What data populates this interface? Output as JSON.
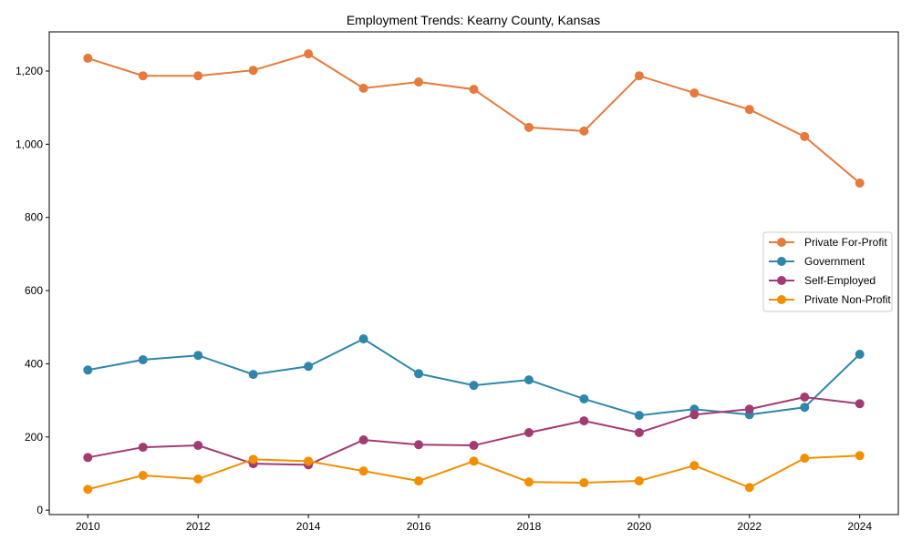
{
  "chart_data": {
    "type": "line",
    "title": "Employment Trends: Kearny County, Kansas",
    "xlabel": "",
    "ylabel": "",
    "x": [
      2010,
      2011,
      2012,
      2013,
      2014,
      2015,
      2016,
      2017,
      2018,
      2019,
      2020,
      2021,
      2022,
      2023,
      2024
    ],
    "xlim": [
      2009.3,
      2024.7
    ],
    "ylim": [
      -12,
      1307
    ],
    "xticks": [
      2010,
      2012,
      2014,
      2016,
      2018,
      2020,
      2022,
      2024
    ],
    "xtick_labels": [
      "2010",
      "2012",
      "2014",
      "2016",
      "2018",
      "2020",
      "2022",
      "2024"
    ],
    "yticks": [
      0,
      200,
      400,
      600,
      800,
      1000,
      1200
    ],
    "ytick_labels": [
      "0",
      "200",
      "400",
      "600",
      "800",
      "1,000",
      "1,200"
    ],
    "grid": false,
    "legend_position": "center-right",
    "series": [
      {
        "name": "Private For-Profit",
        "color": "#E67A3C",
        "values": [
          1235,
          1187,
          1187,
          1202,
          1247,
          1153,
          1170,
          1150,
          1046,
          1036,
          1187,
          1140,
          1095,
          1021,
          894
        ]
      },
      {
        "name": "Government",
        "color": "#2E86AB",
        "values": [
          383,
          411,
          423,
          371,
          393,
          468,
          373,
          341,
          356,
          304,
          259,
          276,
          261,
          281,
          426
        ]
      },
      {
        "name": "Self-Employed",
        "color": "#A23B72",
        "values": [
          144,
          172,
          177,
          127,
          124,
          192,
          179,
          177,
          212,
          244,
          212,
          261,
          276,
          309,
          291
        ]
      },
      {
        "name": "Private Non-Profit",
        "color": "#F18F01",
        "values": [
          57,
          95,
          85,
          139,
          134,
          107,
          80,
          134,
          77,
          75,
          80,
          122,
          62,
          142,
          149
        ]
      }
    ]
  }
}
